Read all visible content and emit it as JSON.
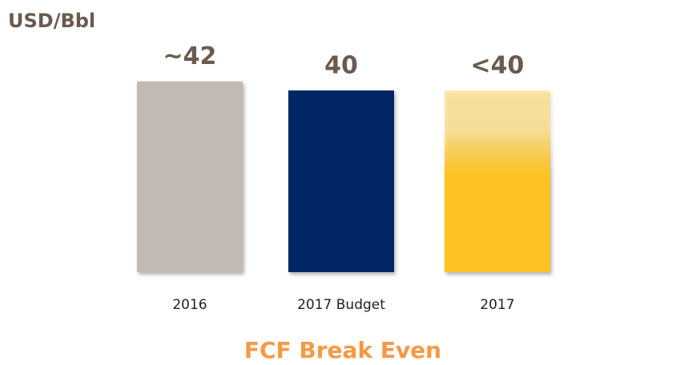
{
  "chart_data": {
    "type": "bar",
    "title": "USD/Bbl",
    "subtitle": "FCF Break Even",
    "categories": [
      "2016",
      "2017 Budget",
      "2017"
    ],
    "values": [
      42,
      40,
      40
    ],
    "value_labels": [
      "~42",
      "40",
      "<40"
    ],
    "colors": [
      "#c4bab4",
      "#052566",
      "#fdc321"
    ]
  }
}
